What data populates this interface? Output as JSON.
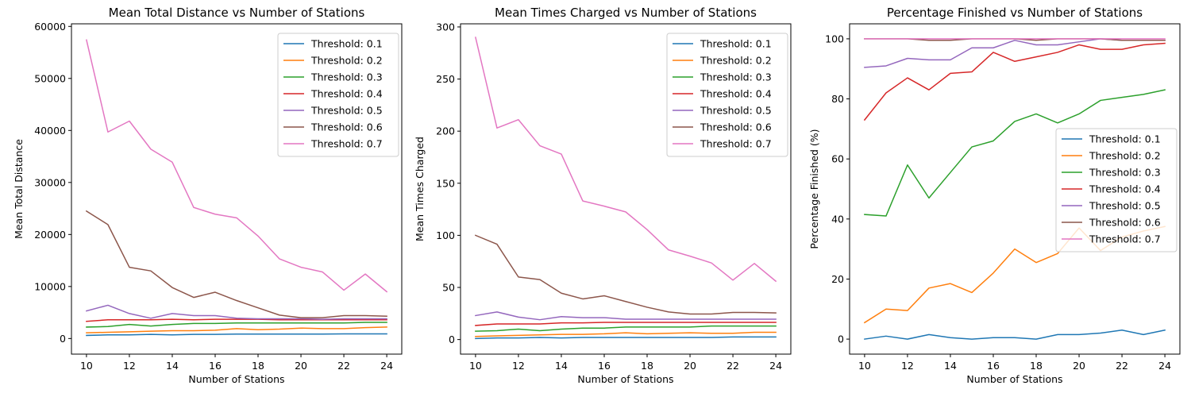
{
  "colors": [
    "#1f77b4",
    "#ff7f0e",
    "#2ca02c",
    "#d62728",
    "#9467bd",
    "#8c564b",
    "#e377c2"
  ],
  "chart_data": [
    {
      "type": "line",
      "title": "Mean Total Distance vs Number of Stations",
      "xlabel": "Number of Stations",
      "ylabel": "Mean Total Distance",
      "xlim": [
        9.3,
        24.7
      ],
      "ylim": [
        -3000,
        60500
      ],
      "xticks": [
        10,
        12,
        14,
        16,
        18,
        20,
        22,
        24
      ],
      "yticks": [
        0,
        10000,
        20000,
        30000,
        40000,
        50000,
        60000
      ],
      "legend": "top-right",
      "x": [
        10,
        11,
        12,
        13,
        14,
        15,
        16,
        17,
        18,
        19,
        20,
        21,
        22,
        23,
        24
      ],
      "series": [
        {
          "name": "Threshold: 0.1",
          "values": [
            600,
            700,
            700,
            800,
            700,
            800,
            800,
            850,
            850,
            850,
            850,
            850,
            900,
            900,
            900
          ]
        },
        {
          "name": "Threshold: 0.2",
          "values": [
            1100,
            1200,
            1300,
            1400,
            1500,
            1500,
            1600,
            1900,
            1700,
            1800,
            2000,
            1900,
            1900,
            2100,
            2200
          ]
        },
        {
          "name": "Threshold: 0.3",
          "values": [
            2200,
            2300,
            2700,
            2400,
            2700,
            2900,
            2900,
            3000,
            3000,
            3000,
            3000,
            3000,
            3000,
            3100,
            3100
          ]
        },
        {
          "name": "Threshold: 0.4",
          "values": [
            3300,
            3600,
            3600,
            3600,
            3700,
            3600,
            3700,
            3700,
            3700,
            3600,
            3600,
            3600,
            3600,
            3600,
            3600
          ]
        },
        {
          "name": "Threshold: 0.5",
          "values": [
            5300,
            6400,
            4800,
            3900,
            4800,
            4400,
            4400,
            3900,
            3800,
            3800,
            3800,
            3700,
            3800,
            3800,
            3800
          ]
        },
        {
          "name": "Threshold: 0.6",
          "values": [
            24500,
            21900,
            13700,
            13000,
            9800,
            7900,
            8900,
            7300,
            5900,
            4500,
            4000,
            4000,
            4400,
            4400,
            4300
          ]
        },
        {
          "name": "Threshold: 0.7",
          "values": [
            57400,
            39700,
            41800,
            36400,
            33900,
            25200,
            23900,
            23200,
            19700,
            15300,
            13700,
            12800,
            9300,
            12400,
            9000
          ]
        }
      ]
    },
    {
      "type": "line",
      "title": "Mean Times Charged vs Number of Stations",
      "xlabel": "Number of Stations",
      "ylabel": "Mean Times Charged",
      "xlim": [
        9.3,
        24.7
      ],
      "ylim": [
        -14,
        303
      ],
      "xticks": [
        10,
        12,
        14,
        16,
        18,
        20,
        22,
        24
      ],
      "yticks": [
        0,
        50,
        100,
        150,
        200,
        250,
        300
      ],
      "legend": "top-right",
      "x": [
        10,
        11,
        12,
        13,
        14,
        15,
        16,
        17,
        18,
        19,
        20,
        21,
        22,
        23,
        24
      ],
      "series": [
        {
          "name": "Threshold: 0.1",
          "values": [
            1,
            1.5,
            1.5,
            2,
            1.5,
            2,
            2,
            2,
            2,
            2,
            2,
            2,
            2.5,
            2.5,
            2.5
          ]
        },
        {
          "name": "Threshold: 0.2",
          "values": [
            3,
            3.5,
            4,
            4.5,
            5,
            5,
            5.5,
            6.5,
            5.5,
            6,
            6.5,
            6,
            6,
            7,
            7
          ]
        },
        {
          "name": "Threshold: 0.3",
          "values": [
            8,
            8.5,
            10,
            8.5,
            10,
            11,
            11,
            12,
            12,
            12,
            12,
            13,
            13,
            13,
            13
          ]
        },
        {
          "name": "Threshold: 0.4",
          "values": [
            13.5,
            15,
            15,
            15,
            16,
            16,
            16.5,
            16.5,
            16.5,
            16.5,
            16.5,
            16.5,
            16.5,
            16.5,
            16.5
          ]
        },
        {
          "name": "Threshold: 0.5",
          "values": [
            23,
            26.5,
            21.5,
            19,
            22,
            21,
            21,
            19.5,
            19.5,
            19.5,
            19.5,
            19.5,
            19.5,
            19.5,
            19.5
          ]
        },
        {
          "name": "Threshold: 0.6",
          "values": [
            100,
            91.5,
            60,
            57.5,
            44.5,
            39,
            42,
            36.5,
            31,
            26.5,
            24.5,
            24.5,
            26,
            26,
            25.5
          ]
        },
        {
          "name": "Threshold: 0.7",
          "values": [
            290,
            203,
            211,
            186,
            178,
            133,
            128,
            122.5,
            105.5,
            86,
            80,
            73.5,
            57,
            73,
            56
          ]
        }
      ]
    },
    {
      "type": "line",
      "title": "Percentage Finished vs Number of Stations",
      "xlabel": "Number of Stations",
      "ylabel": "Percentage Finished (%)",
      "xlim": [
        9.3,
        24.7
      ],
      "ylim": [
        -5,
        105
      ],
      "xticks": [
        10,
        12,
        14,
        16,
        18,
        20,
        22,
        24
      ],
      "yticks": [
        0,
        20,
        40,
        60,
        80,
        100
      ],
      "legend": "center-right",
      "x": [
        10,
        11,
        12,
        13,
        14,
        15,
        16,
        17,
        18,
        19,
        20,
        21,
        22,
        23,
        24
      ],
      "series": [
        {
          "name": "Threshold: 0.1",
          "values": [
            0,
            1,
            0,
            1.5,
            0.5,
            0,
            0.5,
            0.5,
            0,
            1.5,
            1.5,
            2,
            3,
            1.5,
            3
          ]
        },
        {
          "name": "Threshold: 0.2",
          "values": [
            5.5,
            10,
            9.5,
            17,
            18.5,
            15.5,
            22,
            30,
            25.5,
            28.5,
            37,
            29.5,
            34,
            36,
            37.5
          ]
        },
        {
          "name": "Threshold: 0.3",
          "values": [
            41.5,
            41,
            58,
            47,
            55.5,
            64,
            66,
            72.5,
            75,
            72,
            75,
            79.5,
            80.5,
            81.5,
            83
          ]
        },
        {
          "name": "Threshold: 0.4",
          "values": [
            73,
            82,
            87,
            83,
            88.5,
            89,
            95.5,
            92.5,
            94,
            95.5,
            98,
            96.5,
            96.5,
            98,
            98.5
          ]
        },
        {
          "name": "Threshold: 0.5",
          "values": [
            90.5,
            91,
            93.5,
            93,
            93,
            97,
            97,
            99.5,
            98,
            98,
            99,
            100,
            99.5,
            99.5,
            99.5
          ]
        },
        {
          "name": "Threshold: 0.6",
          "values": [
            100,
            100,
            100,
            99.5,
            99.5,
            100,
            100,
            100,
            99.5,
            100,
            100,
            100,
            99.5,
            99.5,
            99.5
          ]
        },
        {
          "name": "Threshold: 0.7",
          "values": [
            100,
            100,
            100,
            100,
            100,
            100,
            100,
            100,
            100,
            100,
            100,
            100,
            100,
            100,
            100
          ]
        }
      ]
    }
  ]
}
